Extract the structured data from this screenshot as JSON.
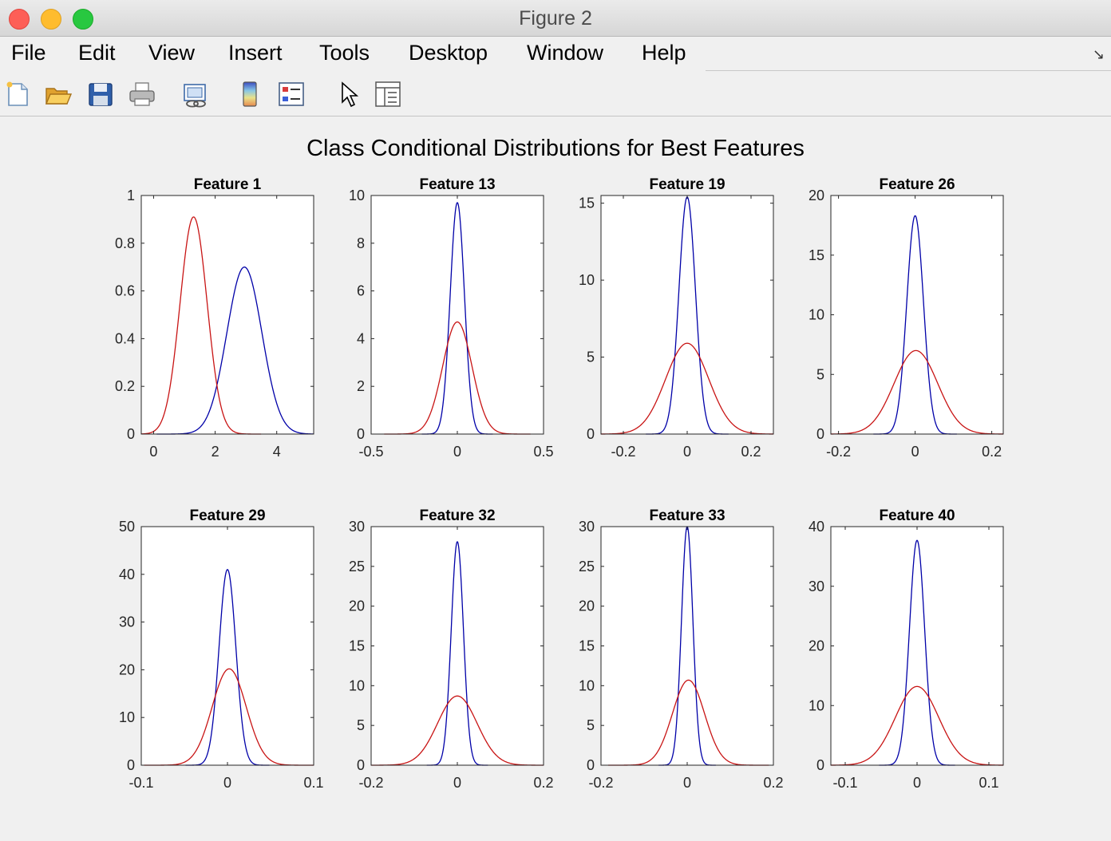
{
  "window": {
    "title": "Figure 2"
  },
  "menu": [
    "File",
    "Edit",
    "View",
    "Insert",
    "Tools",
    "Desktop",
    "Window",
    "Help"
  ],
  "toolbar": [
    {
      "name": "new-figure-icon"
    },
    {
      "name": "open-file-icon"
    },
    {
      "name": "save-icon"
    },
    {
      "name": "print-icon"
    },
    {
      "name": "link-plot-icon"
    },
    {
      "name": "colorbar-icon"
    },
    {
      "name": "legend-icon"
    },
    {
      "name": "pointer-icon"
    },
    {
      "name": "property-inspector-icon"
    }
  ],
  "figure": {
    "title": "Class Conditional Distributions for Best Features"
  },
  "colors": {
    "class_a": "#0000a8",
    "class_b": "#c81414"
  },
  "chart_data": [
    {
      "type": "line",
      "title": "Feature 1",
      "xlim": [
        -0.4,
        5.2
      ],
      "ylim": [
        0,
        1
      ],
      "xticks": [
        0,
        2,
        4
      ],
      "xtick_labels": [
        "0",
        "2",
        "4"
      ],
      "yticks": [
        0,
        0.2,
        0.4,
        0.6,
        0.8,
        1
      ],
      "ytick_labels": [
        "0",
        "0.2",
        "0.4",
        "0.6",
        "0.8",
        "1"
      ],
      "series": [
        {
          "color": "#0000a8",
          "mu": 2.95,
          "peak": 0.7
        },
        {
          "color": "#c81414",
          "mu": 1.3,
          "peak": 0.91
        }
      ]
    },
    {
      "type": "line",
      "title": "Feature 13",
      "xlim": [
        -0.5,
        0.5
      ],
      "ylim": [
        0,
        10
      ],
      "xticks": [
        -0.5,
        0,
        0.5
      ],
      "xtick_labels": [
        "-0.5",
        "0",
        "0.5"
      ],
      "yticks": [
        0,
        2,
        4,
        6,
        8,
        10
      ],
      "ytick_labels": [
        "0",
        "2",
        "4",
        "6",
        "8",
        "10"
      ],
      "series": [
        {
          "color": "#0000a8",
          "mu": 0.0,
          "peak": 9.7
        },
        {
          "color": "#c81414",
          "mu": 0.0,
          "peak": 4.7
        }
      ]
    },
    {
      "type": "line",
      "title": "Feature 19",
      "xlim": [
        -0.27,
        0.27
      ],
      "ylim": [
        0,
        15.5
      ],
      "xticks": [
        -0.2,
        0,
        0.2
      ],
      "xtick_labels": [
        "-0.2",
        "0",
        "0.2"
      ],
      "yticks": [
        0,
        5,
        10,
        15
      ],
      "ytick_labels": [
        "0",
        "5",
        "10",
        "15"
      ],
      "series": [
        {
          "color": "#0000a8",
          "mu": 0.0,
          "peak": 15.4
        },
        {
          "color": "#c81414",
          "mu": 0.0,
          "peak": 5.9
        }
      ]
    },
    {
      "type": "line",
      "title": "Feature 26",
      "xlim": [
        -0.22,
        0.23
      ],
      "ylim": [
        0,
        20
      ],
      "xticks": [
        -0.2,
        0,
        0.2
      ],
      "xtick_labels": [
        "-0.2",
        "0",
        "0.2"
      ],
      "yticks": [
        0,
        5,
        10,
        15,
        20
      ],
      "ytick_labels": [
        "0",
        "5",
        "10",
        "15",
        "20"
      ],
      "series": [
        {
          "color": "#0000a8",
          "mu": 0.0,
          "peak": 18.3
        },
        {
          "color": "#c81414",
          "mu": 0.002,
          "peak": 7.0
        }
      ]
    },
    {
      "type": "line",
      "title": "Feature 29",
      "xlim": [
        -0.1,
        0.1
      ],
      "ylim": [
        0,
        50
      ],
      "xticks": [
        -0.1,
        0,
        0.1
      ],
      "xtick_labels": [
        "-0.1",
        "0",
        "0.1"
      ],
      "yticks": [
        0,
        10,
        20,
        30,
        40,
        50
      ],
      "ytick_labels": [
        "0",
        "10",
        "20",
        "30",
        "40",
        "50"
      ],
      "series": [
        {
          "color": "#0000a8",
          "mu": 0.0,
          "peak": 41
        },
        {
          "color": "#c81414",
          "mu": 0.002,
          "peak": 20.2
        }
      ]
    },
    {
      "type": "line",
      "title": "Feature 32",
      "xlim": [
        -0.2,
        0.2
      ],
      "ylim": [
        0,
        30
      ],
      "xticks": [
        -0.2,
        0,
        0.2
      ],
      "xtick_labels": [
        "-0.2",
        "0",
        "0.2"
      ],
      "yticks": [
        0,
        5,
        10,
        15,
        20,
        25,
        30
      ],
      "ytick_labels": [
        "0",
        "5",
        "10",
        "15",
        "20",
        "25",
        "30"
      ],
      "series": [
        {
          "color": "#0000a8",
          "mu": 0.0,
          "peak": 28.1
        },
        {
          "color": "#c81414",
          "mu": 0.0,
          "peak": 8.7
        }
      ]
    },
    {
      "type": "line",
      "title": "Feature 33",
      "xlim": [
        -0.2,
        0.2
      ],
      "ylim": [
        0,
        30
      ],
      "xticks": [
        -0.2,
        0,
        0.2
      ],
      "xtick_labels": [
        "-0.2",
        "0",
        "0.2"
      ],
      "yticks": [
        0,
        5,
        10,
        15,
        20,
        25,
        30
      ],
      "ytick_labels": [
        "0",
        "5",
        "10",
        "15",
        "20",
        "25",
        "30"
      ],
      "series": [
        {
          "color": "#0000a8",
          "mu": 0.0,
          "peak": 30
        },
        {
          "color": "#c81414",
          "mu": 0.003,
          "peak": 10.7
        }
      ]
    },
    {
      "type": "line",
      "title": "Feature 40",
      "xlim": [
        -0.12,
        0.12
      ],
      "ylim": [
        0,
        40
      ],
      "xticks": [
        -0.1,
        0,
        0.1
      ],
      "xtick_labels": [
        "-0.1",
        "0",
        "0.1"
      ],
      "yticks": [
        0,
        10,
        20,
        30,
        40
      ],
      "ytick_labels": [
        "0",
        "10",
        "20",
        "30",
        "40"
      ],
      "series": [
        {
          "color": "#0000a8",
          "mu": 0.0,
          "peak": 37.7
        },
        {
          "color": "#c81414",
          "mu": 0.0,
          "peak": 13.2
        }
      ]
    }
  ]
}
